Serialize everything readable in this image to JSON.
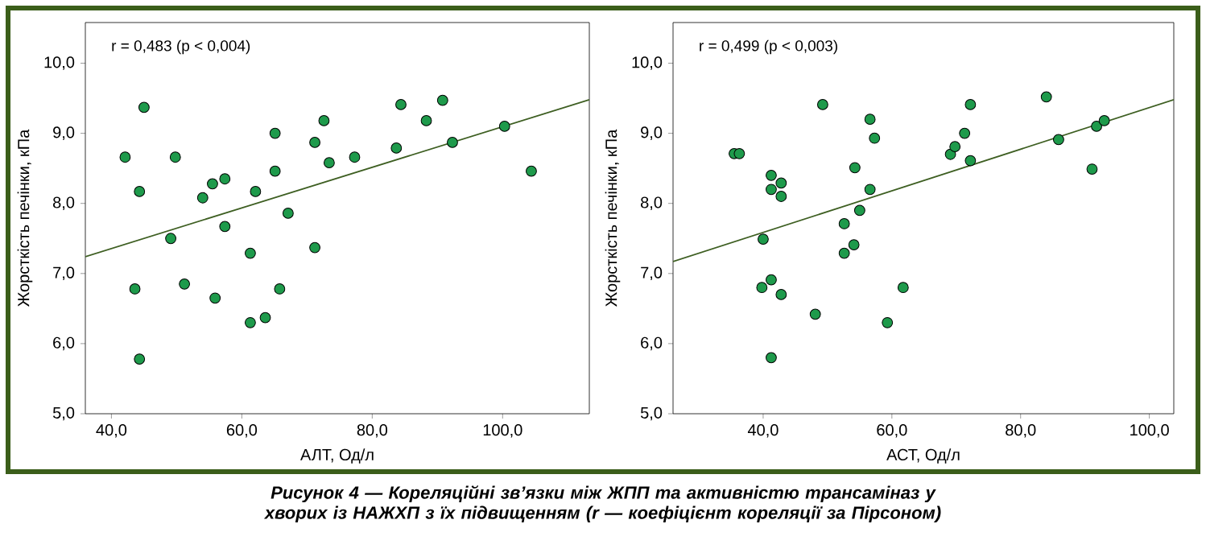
{
  "chart_data": [
    {
      "type": "scatter",
      "xlabel": "АЛТ, Од/л",
      "ylabel": "Жорсткість печінки, кПа",
      "xlim": [
        36,
        113.3
      ],
      "ylim": [
        5,
        10.58
      ],
      "xticks": [
        {
          "value": 40,
          "label": "40,0"
        },
        {
          "value": 60,
          "label": "60,0"
        },
        {
          "value": 80,
          "label": "80,0"
        },
        {
          "value": 100,
          "label": "100,0"
        }
      ],
      "yticks": [
        {
          "value": 5,
          "label": "5,0"
        },
        {
          "value": 6,
          "label": "6,0"
        },
        {
          "value": 7,
          "label": "7,0"
        },
        {
          "value": 8,
          "label": "8,0"
        },
        {
          "value": 9,
          "label": "9,0"
        },
        {
          "value": 10,
          "label": "10,0"
        }
      ],
      "series": [
        {
          "type": "scatter",
          "marker": "circle",
          "color": "#1e9a4b",
          "x": [
            42.1,
            45.0,
            44.3,
            43.6,
            44.3,
            49.1,
            49.8,
            51.2,
            54.0,
            55.5,
            55.9,
            57.4,
            57.4,
            61.3,
            61.3,
            62.1,
            63.6,
            65.1,
            65.1,
            65.8,
            67.1,
            71.2,
            71.2,
            72.6,
            73.4,
            77.3,
            83.7,
            84.4,
            88.3,
            90.8,
            92.3,
            100.3,
            104.4
          ],
          "values": [
            8.66,
            9.37,
            8.17,
            6.78,
            5.78,
            7.5,
            8.66,
            6.85,
            8.08,
            8.28,
            6.65,
            8.35,
            7.67,
            7.29,
            6.3,
            8.17,
            6.37,
            9.0,
            8.46,
            6.78,
            7.86,
            8.87,
            7.37,
            9.18,
            8.58,
            8.66,
            8.79,
            9.41,
            9.18,
            9.47,
            8.87,
            9.1,
            8.46
          ]
        },
        {
          "type": "line",
          "line_style": "solid",
          "color": "#3e5f22",
          "x": [
            36,
            113.3
          ],
          "values": [
            7.24,
            9.48
          ]
        }
      ],
      "annotations": [
        "r = 0,483 (p < 0,004)",
        "Рисунок 4 — Кореляційні зв’язки між ЖПП та активністю трансаміназ у хворих із НАЖХП з їх підвищенням (r — коефіцієнт кореляції за Пірсоном)"
      ]
    },
    {
      "type": "scatter",
      "xlabel": "АСТ, Од/л",
      "ylabel": "Жорсткість печінки, кПа",
      "xlim": [
        26,
        103.8
      ],
      "ylim": [
        5,
        10.58
      ],
      "xticks": [
        {
          "value": 40,
          "label": "40,0"
        },
        {
          "value": 60,
          "label": "60,0"
        },
        {
          "value": 80,
          "label": "80,0"
        },
        {
          "value": 100,
          "label": "100,0"
        }
      ],
      "yticks": [
        {
          "value": 5,
          "label": "5,0"
        },
        {
          "value": 6,
          "label": "6,0"
        },
        {
          "value": 7,
          "label": "7,0"
        },
        {
          "value": 8,
          "label": "8,0"
        },
        {
          "value": 9,
          "label": "9,0"
        },
        {
          "value": 10,
          "label": "10,0"
        }
      ],
      "series": [
        {
          "type": "scatter",
          "marker": "circle",
          "color": "#1e9a4b",
          "x": [
            35.5,
            36.3,
            41.25,
            41.25,
            42.8,
            42.8,
            40.0,
            39.8,
            41.25,
            42.8,
            41.25,
            48.1,
            49.25,
            52.6,
            52.6,
            54.1,
            54.25,
            55.0,
            56.6,
            56.6,
            57.3,
            59.3,
            61.75,
            69.1,
            69.8,
            71.3,
            72.2,
            72.2,
            84.0,
            85.9,
            91.1,
            91.8,
            93.0
          ],
          "values": [
            8.71,
            8.71,
            8.4,
            8.2,
            8.29,
            8.1,
            7.49,
            6.8,
            6.91,
            6.7,
            5.8,
            6.42,
            9.41,
            7.71,
            7.29,
            7.41,
            8.51,
            7.9,
            9.2,
            8.2,
            8.93,
            6.3,
            6.8,
            8.7,
            8.81,
            9.0,
            9.41,
            8.61,
            9.52,
            8.91,
            8.49,
            9.1,
            9.18
          ]
        },
        {
          "type": "line",
          "line_style": "solid",
          "color": "#3e5f22",
          "x": [
            26,
            103.8
          ],
          "values": [
            7.17,
            9.48
          ]
        }
      ],
      "annotations": [
        "r = 0,499 (p < 0,003)"
      ]
    }
  ]
}
